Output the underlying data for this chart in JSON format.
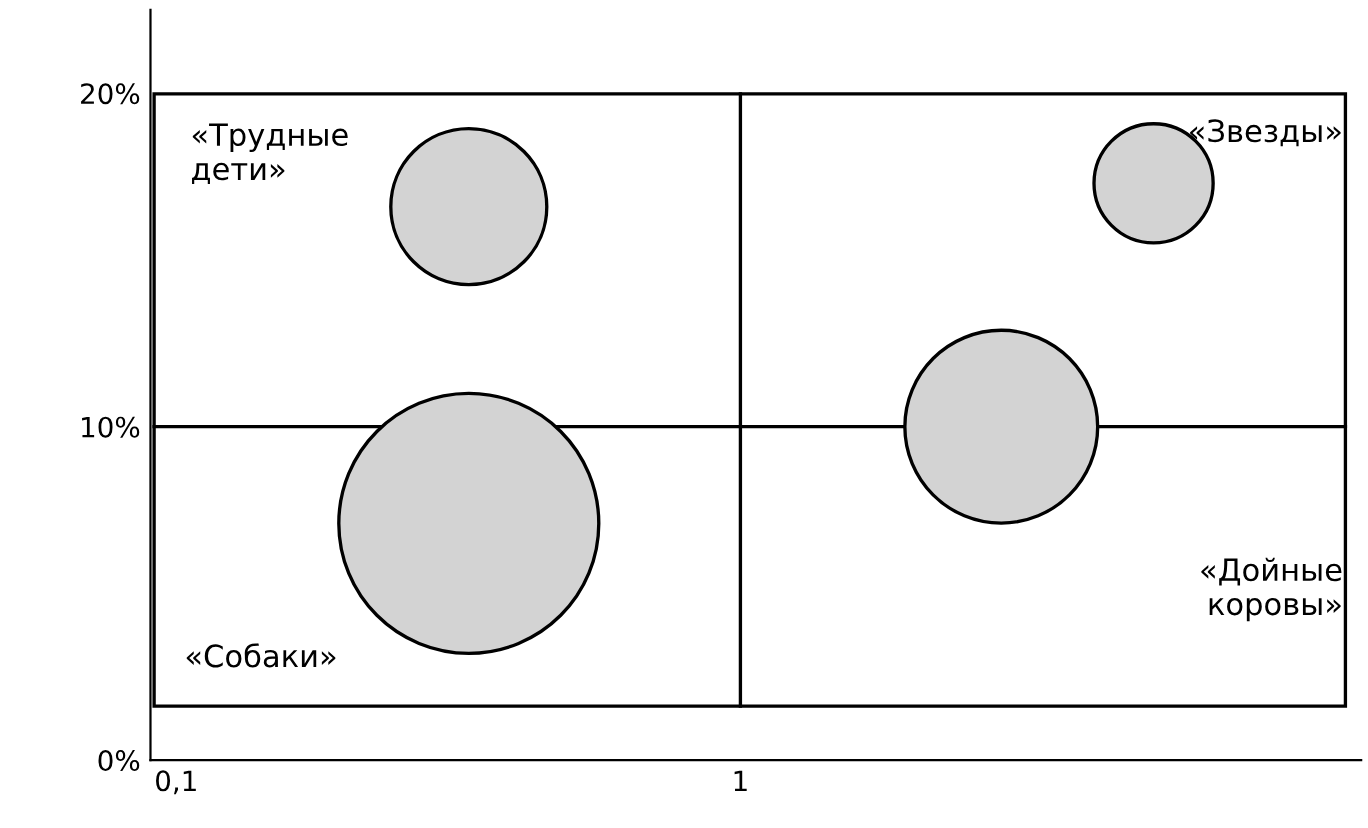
{
  "chart_data": {
    "type": "bubble",
    "x": [
      0.33,
      5.4,
      2.9,
      0.33
    ],
    "values": [
      16.6,
      17.3,
      10,
      7.1
    ],
    "sizes": [
      0.36,
      0.21,
      0.55,
      1
    ],
    "colors": [
      "#d3d3d3",
      "#d3d3d3",
      "#d3d3d3",
      "#d3d3d3"
    ],
    "log": "x",
    "xlim": [
      0.09,
      12.6
    ],
    "xticks": [
      {
        "value": 0.1,
        "label": "0,1"
      },
      1
    ],
    "ylim": [
      0,
      22.5
    ],
    "yticks": [
      {
        "value": 0,
        "label": "0%"
      },
      {
        "value": 10,
        "label": "10%"
      },
      {
        "value": 20,
        "label": "20%"
      }
    ],
    "ref_lines": [
      {
        "axis": "x",
        "value": 1,
        "color": "#000000"
      },
      {
        "axis": "y",
        "value": 10,
        "color": "#000000"
      }
    ],
    "annotations": [
      "«Трудные\nдети»",
      "«Звезды»",
      "«Дойные\nкоровы»",
      "«Собаки»"
    ],
    "grid": false,
    "legend": false
  }
}
